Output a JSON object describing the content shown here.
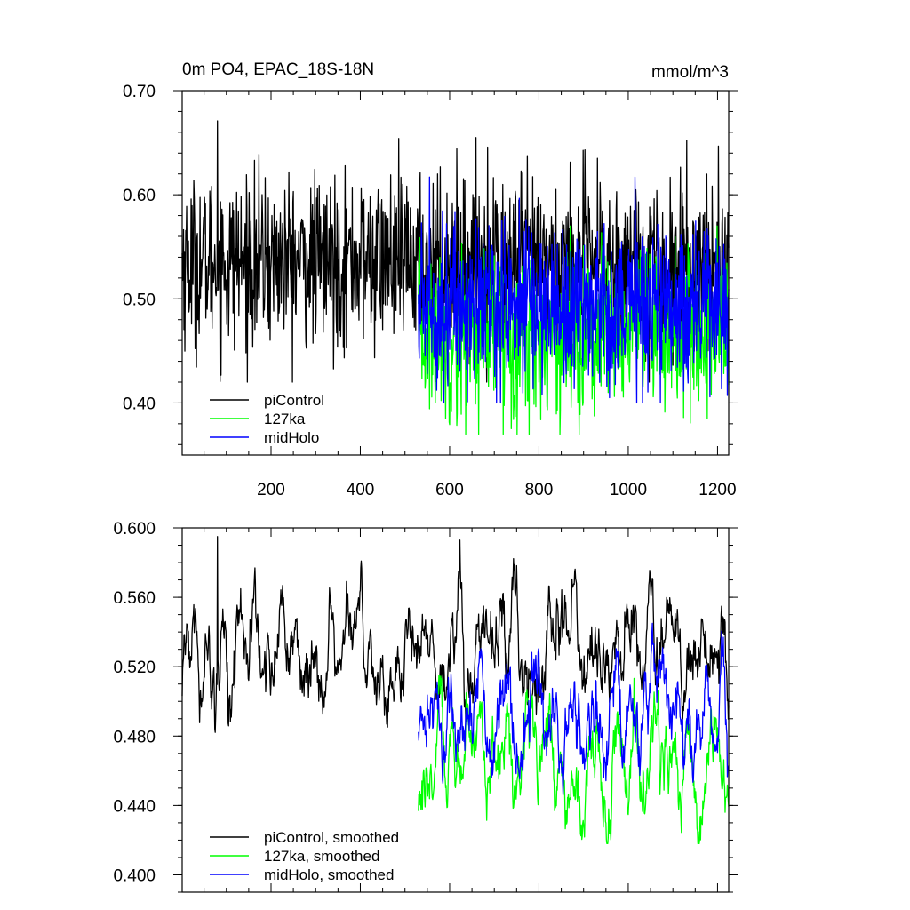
{
  "chart_data": [
    {
      "type": "line",
      "title": "0m PO4, EPAC_18S-18N",
      "units": "mmol/m^3",
      "xlim": [
        1,
        1225
      ],
      "ylim": [
        0.35,
        0.7
      ],
      "xticks": [
        200,
        400,
        600,
        800,
        1000,
        1200
      ],
      "xtick_labels": [
        "200",
        "400",
        "600",
        "800",
        "1000",
        "1200"
      ],
      "yticks": [
        0.4,
        0.5,
        0.6,
        0.7
      ],
      "ytick_labels": [
        "0.40",
        "0.50",
        "0.60",
        "0.70"
      ],
      "legend_position": "bottom-left",
      "series": [
        {
          "name": "piControl",
          "color": "#000000",
          "x_start": 1,
          "x_end": 1225,
          "mean": 0.535,
          "range": [
            0.42,
            0.67
          ],
          "peak": {
            "x": 80,
            "y": 0.671
          }
        },
        {
          "name": "127ka",
          "color": "#00ff00",
          "x_start": 530,
          "x_end": 1225,
          "mean": 0.465,
          "range": [
            0.37,
            0.57
          ]
        },
        {
          "name": "midHolo",
          "color": "#0000ff",
          "x_start": 530,
          "x_end": 1225,
          "mean": 0.495,
          "range": [
            0.4,
            0.617
          ],
          "peak": {
            "x": 555,
            "y": 0.617
          }
        }
      ]
    },
    {
      "type": "line",
      "title": "",
      "xlim": [
        1,
        1225
      ],
      "ylim": [
        0.39,
        0.6
      ],
      "xticks": [
        200,
        400,
        600,
        800,
        1000,
        1200
      ],
      "yticks": [
        0.4,
        0.44,
        0.48,
        0.52,
        0.56,
        0.6
      ],
      "ytick_labels": [
        "0.400",
        "0.440",
        "0.480",
        "0.520",
        "0.560",
        "0.600"
      ],
      "legend_position": "bottom-left",
      "series": [
        {
          "name": "piControl, smoothed",
          "color": "#000000",
          "x_start": 1,
          "x_end": 1225,
          "mean": 0.53,
          "range": [
            0.48,
            0.595
          ],
          "peak": {
            "x": 80,
            "y": 0.595
          }
        },
        {
          "name": "127ka, smoothed",
          "color": "#00ff00",
          "x_start": 530,
          "x_end": 1225,
          "mean": 0.465,
          "range": [
            0.418,
            0.545
          ]
        },
        {
          "name": "midHolo, smoothed",
          "color": "#0000ff",
          "x_start": 530,
          "x_end": 1225,
          "mean": 0.49,
          "range": [
            0.44,
            0.545
          ]
        }
      ]
    }
  ]
}
